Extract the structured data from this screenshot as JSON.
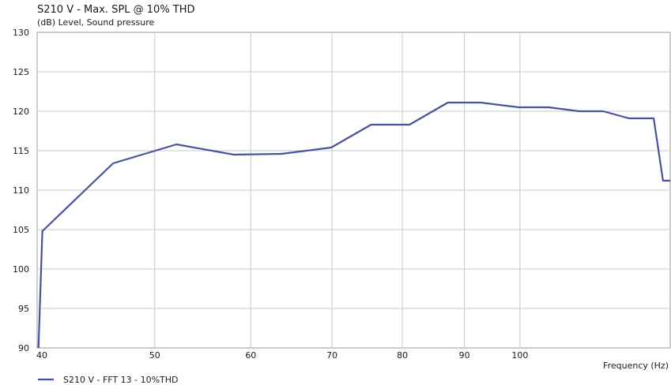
{
  "chart_data": {
    "type": "line",
    "title": "S210 V - Max. SPL @ 10% THD",
    "ylabel": "(dB)  Level, Sound pressure",
    "xlabel": "Frequency  (Hz)",
    "x_scale": "log",
    "xlim": [
      40,
      133
    ],
    "ylim": [
      90,
      130
    ],
    "x_ticks": [
      40,
      50,
      60,
      70,
      80,
      90,
      100
    ],
    "x_tick_labels": [
      "40",
      "50",
      "60",
      "70",
      "80",
      "90",
      "100"
    ],
    "y_ticks": [
      90,
      95,
      100,
      105,
      110,
      115,
      120,
      125,
      130
    ],
    "y_tick_labels": [
      "90",
      "95",
      "100",
      "105",
      "110",
      "115",
      "120",
      "125",
      "130"
    ],
    "grid": true,
    "legend_position": "bottom-left",
    "series": [
      {
        "name": "S210 V - FFT 13 - 10%THD",
        "color": "#4a52a0",
        "points": [
          [
            40.1,
            90.0
          ],
          [
            40.4,
            104.8
          ],
          [
            46.2,
            113.4
          ],
          [
            52.1,
            115.8
          ],
          [
            58.1,
            114.5
          ],
          [
            63.6,
            114.6
          ],
          [
            69.9,
            115.4
          ],
          [
            75.4,
            118.3
          ],
          [
            81.1,
            118.3
          ],
          [
            87.2,
            121.1
          ],
          [
            92.8,
            121.1
          ],
          [
            99.8,
            120.5
          ],
          [
            105.6,
            120.5
          ],
          [
            111.9,
            120.0
          ],
          [
            117.1,
            120.0
          ],
          [
            123.0,
            119.1
          ],
          [
            128.9,
            119.1
          ],
          [
            131.2,
            111.2
          ],
          [
            133.0,
            111.2
          ]
        ]
      }
    ]
  }
}
